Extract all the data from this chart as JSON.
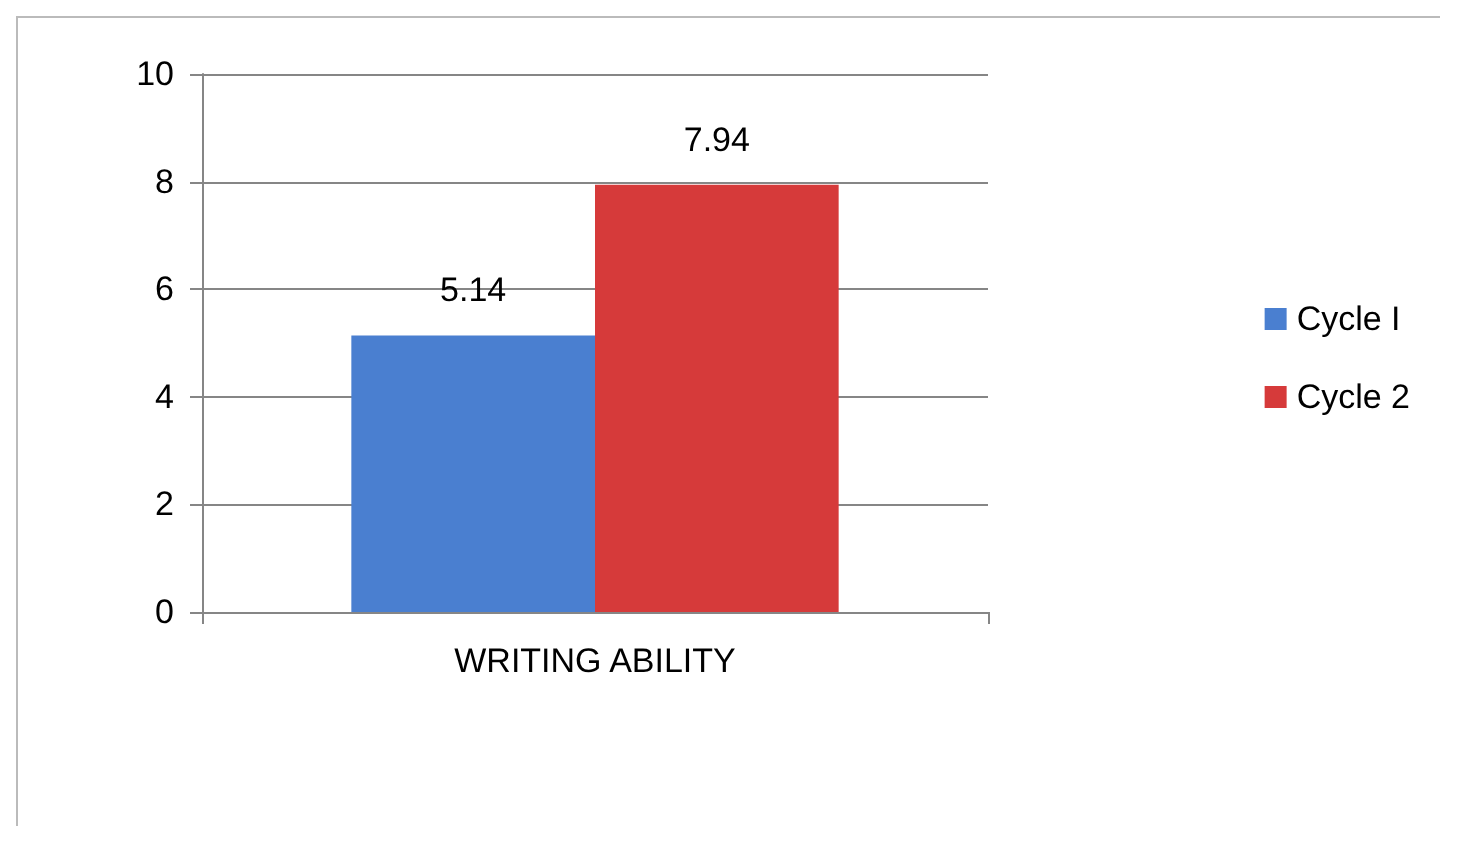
{
  "chart_data": {
    "type": "bar",
    "categories": [
      "WRITING ABILITY"
    ],
    "series": [
      {
        "name": "Cycle I",
        "color": "#4a7fd0",
        "values": [
          5.14
        ]
      },
      {
        "name": "Cycle 2",
        "color": "#d63a3a",
        "values": [
          7.94
        ]
      }
    ],
    "ylim": [
      0,
      10
    ],
    "yticks": [
      0,
      2,
      4,
      6,
      8,
      10
    ],
    "grid": "y",
    "legend": "right",
    "data_labels": true
  }
}
